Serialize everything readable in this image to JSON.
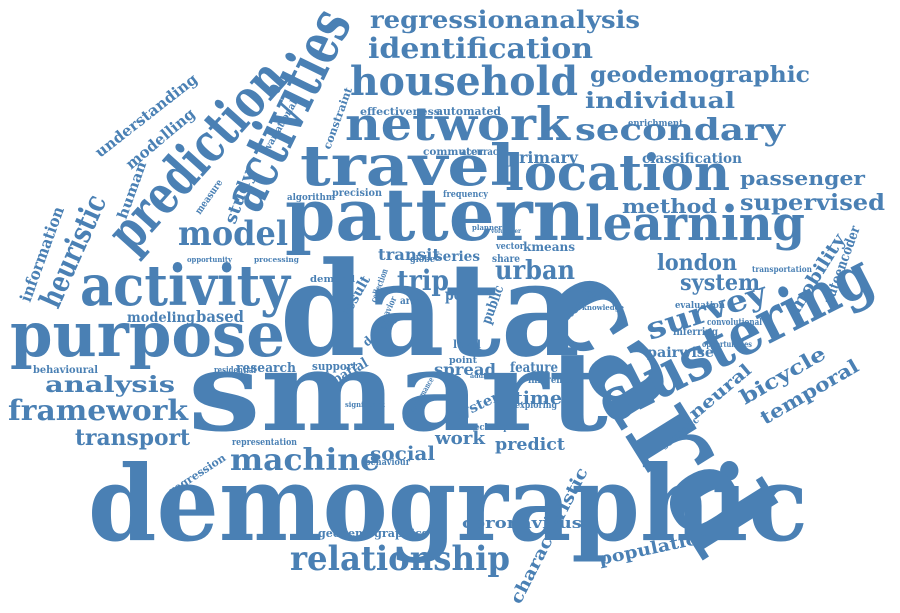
{
  "word_color": "#4a80b4",
  "words": [
    "demographic",
    "smart",
    "data",
    "card",
    "pattern",
    "clustering",
    "purpose",
    "travel",
    "activities",
    "prediction",
    "activity",
    "location",
    "network",
    "household",
    "learning",
    "relationship",
    "framework",
    "machine",
    "secondary",
    "survey",
    "heuristic",
    "model",
    "analysis",
    "transport",
    "identification",
    "regressionanalysis",
    "geodemographic",
    "individual",
    "urban",
    "london",
    "supervised",
    "passenger",
    "method",
    "system",
    "bicycle",
    "temporal",
    "mobility",
    "neural",
    "population",
    "characteristic",
    "work",
    "social",
    "time",
    "spread",
    "trip",
    "transit",
    "predict",
    "coronavirus",
    "geodemographics",
    "information",
    "understanding",
    "modelling",
    "human",
    "study",
    "modeling",
    "based",
    "research",
    "behavioural",
    "residential",
    "regression",
    "primary",
    "classification",
    "automated",
    "effectiveness",
    "constraint",
    "variational",
    "commuter",
    "accuracy",
    "enrichment",
    "algorithm",
    "precision",
    "frequency",
    "autoencoder",
    "pairwise",
    "inferring",
    "evaluation",
    "transportation",
    "convolutional",
    "opportunities",
    "semantic",
    "oyster",
    "feature",
    "inference",
    "exploring",
    "spatial",
    "support",
    "representation",
    "behaviour",
    "significant",
    "result",
    "poi",
    "public",
    "series",
    "kmeans",
    "vector",
    "share",
    "globe",
    "demand",
    "measure",
    "opportunity",
    "processing",
    "interest",
    "effective",
    "knowledge",
    "detect",
    "level",
    "point",
    "technique",
    "performance",
    "planner",
    "collection",
    "area",
    "behavior",
    "volunteer",
    "addition"
  ]
}
